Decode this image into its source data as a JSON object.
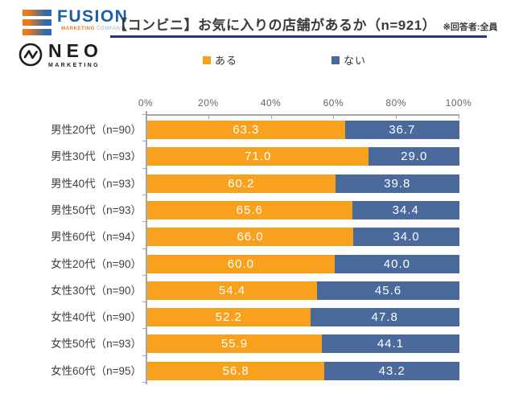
{
  "logos": {
    "fusion": {
      "name": "FUSION",
      "sub_marketing": "MARKETING",
      "sub_company": "COMPANY"
    },
    "neo": {
      "name": "NEO",
      "sub": "MARKETING"
    }
  },
  "header": {
    "title": "【コンビニ】お気に入りの店舗があるか（n=921）",
    "note": "※回答者:全員"
  },
  "colors": {
    "aru_orange": "#F7A11D",
    "nai_blue": "#4A6A9B",
    "underline_navy": "#26328C",
    "axis_gray": "#A6A6A6"
  },
  "chart_data": {
    "type": "bar",
    "orientation": "horizontal",
    "stacked": true,
    "unit": "%",
    "xlim": [
      0,
      100
    ],
    "x_ticks": [
      "0%",
      "20%",
      "40%",
      "60%",
      "80%",
      "100%"
    ],
    "legend_position": "top",
    "categories": [
      "男性20代（n=90）",
      "男性30代（n=93）",
      "男性40代（n=93）",
      "男性50代（n=93）",
      "男性60代（n=94）",
      "女性20代（n=90）",
      "女性30代（n=90）",
      "女性40代（n=90）",
      "女性50代（n=93）",
      "女性60代（n=95）"
    ],
    "series": [
      {
        "name": "ある",
        "color": "#F7A11D",
        "values": [
          63.3,
          71.0,
          60.2,
          65.6,
          66.0,
          60.0,
          54.4,
          52.2,
          55.9,
          56.8
        ],
        "labels": [
          "63.3",
          "71.0",
          "60.2",
          "65.6",
          "66.0",
          "60.0",
          "54.4",
          "52.2",
          "55.9",
          "56.8"
        ]
      },
      {
        "name": "ない",
        "color": "#4A6A9B",
        "values": [
          36.7,
          29.0,
          39.8,
          34.4,
          34.0,
          40.0,
          45.6,
          47.8,
          44.1,
          43.2
        ],
        "labels": [
          "36.7",
          "29.0",
          "39.8",
          "34.4",
          "34.0",
          "40.0",
          "45.6",
          "47.8",
          "44.1",
          "43.2"
        ]
      }
    ]
  }
}
